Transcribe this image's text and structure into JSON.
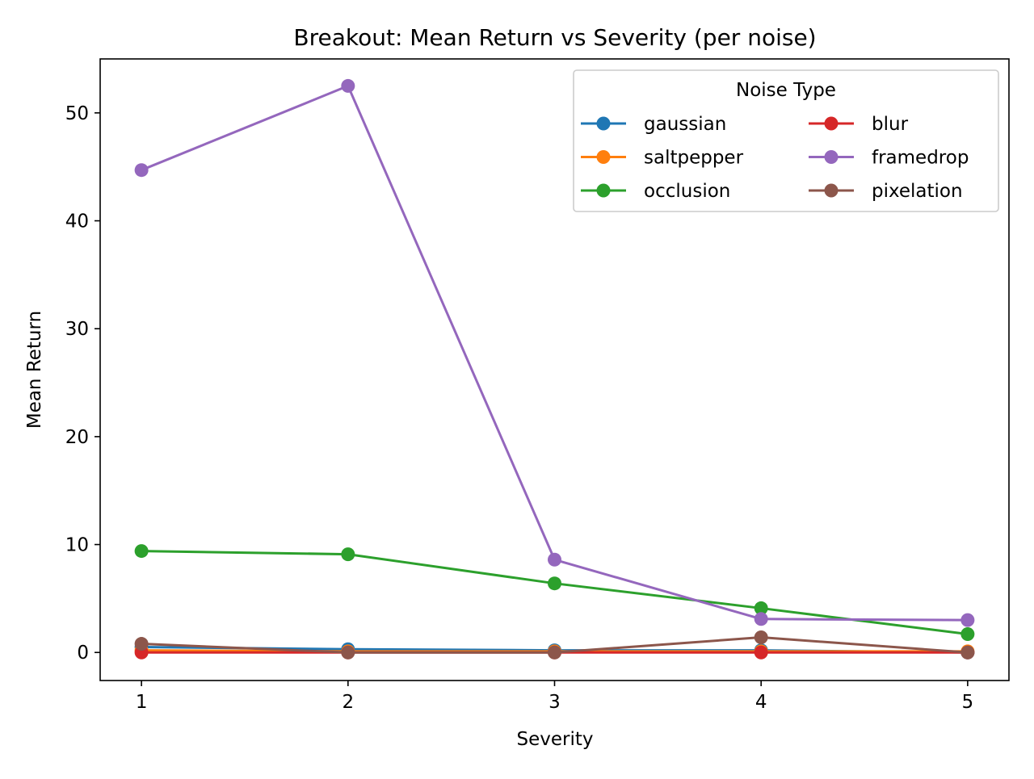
{
  "chart_data": {
    "type": "line",
    "title": "Breakout: Mean Return vs Severity (per noise)",
    "xlabel": "Severity",
    "ylabel": "Mean Return",
    "x": [
      1,
      2,
      3,
      4,
      5
    ],
    "xlim": [
      0.8,
      5.2
    ],
    "ylim": [
      -2.6,
      55.0
    ],
    "xticks": [
      "1",
      "2",
      "3",
      "4",
      "5"
    ],
    "yticks": [
      "0",
      "10",
      "20",
      "30",
      "40",
      "50"
    ],
    "grid": false,
    "legend": {
      "title": "Noise Type",
      "placement": "top-right",
      "columns": 2
    },
    "series": [
      {
        "name": "gaussian",
        "color": "#1f77b4",
        "values": [
          0.5,
          0.3,
          0.2,
          0.2,
          0.0
        ]
      },
      {
        "name": "saltpepper",
        "color": "#ff7f0e",
        "values": [
          0.2,
          0.1,
          0.1,
          0.1,
          0.1
        ]
      },
      {
        "name": "occlusion",
        "color": "#2ca02c",
        "values": [
          9.4,
          9.1,
          6.4,
          4.1,
          1.7
        ]
      },
      {
        "name": "blur",
        "color": "#d62728",
        "values": [
          0.0,
          0.0,
          0.0,
          0.0,
          0.0
        ]
      },
      {
        "name": "framedrop",
        "color": "#9467bd",
        "values": [
          44.7,
          52.5,
          8.6,
          3.1,
          3.0
        ]
      },
      {
        "name": "pixelation",
        "color": "#8c564b",
        "values": [
          0.8,
          0.0,
          0.0,
          1.4,
          0.0
        ]
      }
    ]
  }
}
